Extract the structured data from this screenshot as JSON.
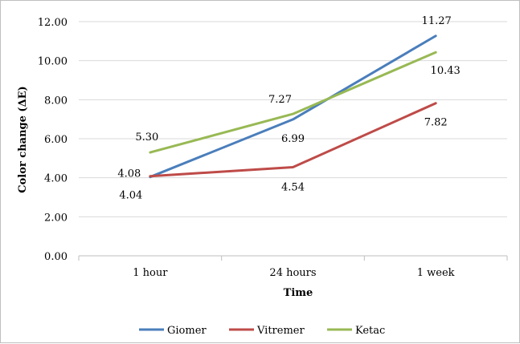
{
  "chart_data": {
    "type": "line",
    "title": "",
    "xlabel": "Time",
    "ylabel": "Color change (ΔE)",
    "categories": [
      "1 hour",
      "24 hours",
      "1 week"
    ],
    "ylim": [
      0,
      12
    ],
    "yticks": [
      "0.00",
      "2.00",
      "4.00",
      "6.00",
      "8.00",
      "10.00",
      "12.00"
    ],
    "grid": true,
    "legend_position": "bottom",
    "series": [
      {
        "name": "Giomer",
        "values": [
          4.04,
          6.99,
          11.27
        ],
        "labels": [
          "4.04",
          "6.99",
          "11.27"
        ],
        "color": "#4a7ebb"
      },
      {
        "name": "Vitremer",
        "values": [
          4.08,
          4.54,
          7.82
        ],
        "labels": [
          "4.08",
          "4.54",
          "7.82"
        ],
        "color": "#be4b48"
      },
      {
        "name": "Ketac",
        "values": [
          5.3,
          7.27,
          10.43
        ],
        "labels": [
          "5.30",
          "7.27",
          "10.43"
        ],
        "color": "#98b954"
      }
    ]
  }
}
